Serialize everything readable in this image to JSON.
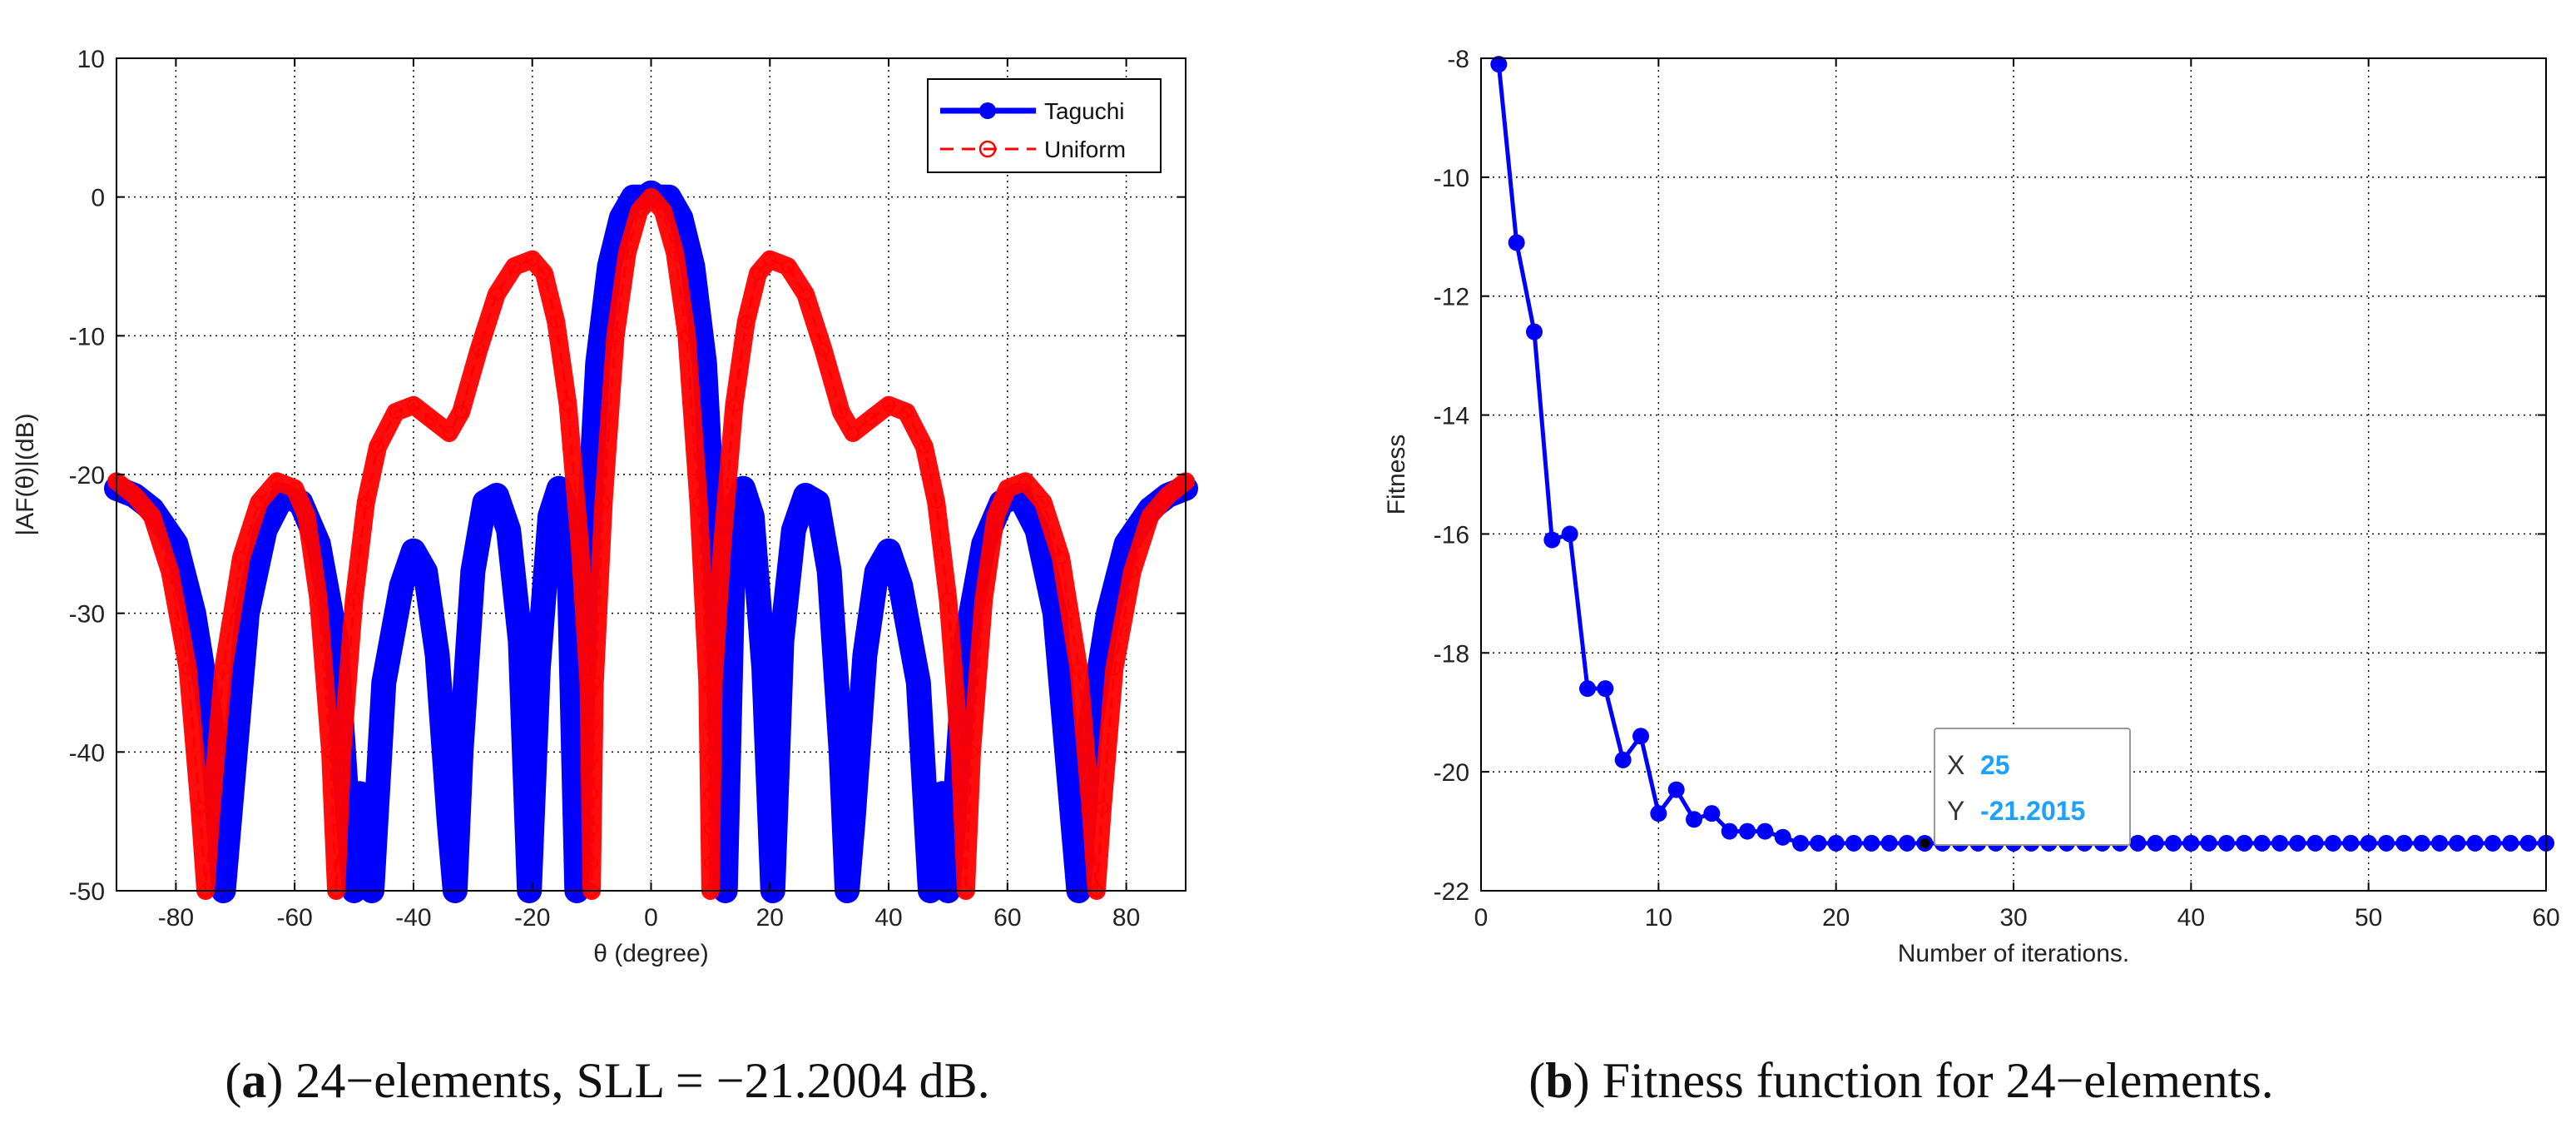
{
  "chart_data": [
    {
      "type": "line",
      "title": "",
      "xlabel": "θ (degree)",
      "ylabel": "|AF(θ)|(dB)",
      "xlim": [
        -90,
        90
      ],
      "ylim": [
        -50,
        10
      ],
      "xticks": [
        -80,
        -60,
        -40,
        -20,
        0,
        20,
        40,
        60,
        80
      ],
      "yticks": [
        10,
        0,
        -10,
        -20,
        -30,
        -40,
        -50
      ],
      "grid": true,
      "legend_position": "top-right",
      "series": [
        {
          "name": "Taguchi",
          "color": "#0000ff",
          "style": "solid line with filled circle markers",
          "points": [
            [
              -90,
              -21
            ],
            [
              -87,
              -21.5
            ],
            [
              -84,
              -22.5
            ],
            [
              -80,
              -25
            ],
            [
              -77,
              -30
            ],
            [
              -74,
              -38
            ],
            [
              -72,
              -50
            ],
            [
              -70,
              -40
            ],
            [
              -68,
              -30
            ],
            [
              -65,
              -24
            ],
            [
              -62,
              -21.5
            ],
            [
              -59,
              -22
            ],
            [
              -56,
              -25
            ],
            [
              -53,
              -32
            ],
            [
              -51,
              -45
            ],
            [
              -50,
              -50
            ],
            [
              -49,
              -43
            ],
            [
              -47,
              -50
            ],
            [
              -45,
              -35
            ],
            [
              -42,
              -28
            ],
            [
              -40,
              -25.5
            ],
            [
              -38,
              -27
            ],
            [
              -36,
              -33
            ],
            [
              -34,
              -45
            ],
            [
              -33,
              -50
            ],
            [
              -32,
              -40
            ],
            [
              -30,
              -27
            ],
            [
              -28,
              -22
            ],
            [
              -26,
              -21.5
            ],
            [
              -24,
              -24
            ],
            [
              -22,
              -32
            ],
            [
              -20.5,
              -50
            ],
            [
              -19,
              -34
            ],
            [
              -17,
              -23
            ],
            [
              -15.5,
              -21
            ],
            [
              -14,
              -23
            ],
            [
              -12.5,
              -50
            ],
            [
              -11,
              -28
            ],
            [
              -9,
              -12
            ],
            [
              -7,
              -5
            ],
            [
              -5,
              -1.5
            ],
            [
              -3,
              0
            ],
            [
              -1,
              0
            ],
            [
              0,
              0.3
            ],
            [
              1,
              0
            ],
            [
              3,
              0
            ],
            [
              5,
              -1.5
            ],
            [
              7,
              -5
            ],
            [
              9,
              -12
            ],
            [
              11,
              -28
            ],
            [
              12.5,
              -50
            ],
            [
              14,
              -23
            ],
            [
              15.5,
              -21
            ],
            [
              17,
              -23
            ],
            [
              19,
              -34
            ],
            [
              20.5,
              -50
            ],
            [
              22,
              -32
            ],
            [
              24,
              -24
            ],
            [
              26,
              -21.5
            ],
            [
              28,
              -22
            ],
            [
              30,
              -27
            ],
            [
              32,
              -40
            ],
            [
              33,
              -50
            ],
            [
              34,
              -45
            ],
            [
              36,
              -33
            ],
            [
              38,
              -27
            ],
            [
              40,
              -25.5
            ],
            [
              42,
              -28
            ],
            [
              45,
              -35
            ],
            [
              47,
              -50
            ],
            [
              49,
              -43
            ],
            [
              50,
              -50
            ],
            [
              51,
              -45
            ],
            [
              53,
              -32
            ],
            [
              56,
              -25
            ],
            [
              59,
              -22
            ],
            [
              62,
              -21.5
            ],
            [
              65,
              -24
            ],
            [
              68,
              -30
            ],
            [
              70,
              -40
            ],
            [
              72,
              -50
            ],
            [
              74,
              -38
            ],
            [
              77,
              -30
            ],
            [
              80,
              -25
            ],
            [
              84,
              -22.5
            ],
            [
              87,
              -21.5
            ],
            [
              90,
              -21
            ]
          ]
        },
        {
          "name": "Uniform",
          "color": "#ff0000",
          "style": "dashed line with open circle markers",
          "points": [
            [
              -90,
              -20.5
            ],
            [
              -87,
              -21.5
            ],
            [
              -84,
              -23
            ],
            [
              -81,
              -27
            ],
            [
              -78,
              -34
            ],
            [
              -76,
              -44
            ],
            [
              -75,
              -50
            ],
            [
              -74,
              -44
            ],
            [
              -72,
              -34
            ],
            [
              -69,
              -26
            ],
            [
              -66,
              -22
            ],
            [
              -63,
              -20.5
            ],
            [
              -60,
              -21
            ],
            [
              -58,
              -23
            ],
            [
              -56,
              -29
            ],
            [
              -54,
              -40
            ],
            [
              -53,
              -50
            ],
            [
              -52,
              -40
            ],
            [
              -50,
              -29
            ],
            [
              -48,
              -22
            ],
            [
              -46,
              -18
            ],
            [
              -43,
              -15.5
            ],
            [
              -40,
              -15
            ],
            [
              -37,
              -16
            ],
            [
              -34,
              -17
            ],
            [
              -32,
              -15.5
            ],
            [
              -29,
              -11
            ],
            [
              -26,
              -7
            ],
            [
              -23,
              -5
            ],
            [
              -20,
              -4.5
            ],
            [
              -18,
              -5.5
            ],
            [
              -16,
              -9
            ],
            [
              -14,
              -15
            ],
            [
              -12,
              -25
            ],
            [
              -10.5,
              -35
            ],
            [
              -10,
              -50
            ],
            [
              -9.5,
              -35
            ],
            [
              -8,
              -22
            ],
            [
              -6,
              -10
            ],
            [
              -4,
              -4
            ],
            [
              -2,
              -1
            ],
            [
              0,
              0
            ],
            [
              2,
              -1
            ],
            [
              4,
              -4
            ],
            [
              6,
              -10
            ],
            [
              8,
              -22
            ],
            [
              9.5,
              -35
            ],
            [
              10,
              -50
            ],
            [
              10.5,
              -35
            ],
            [
              12,
              -25
            ],
            [
              14,
              -15
            ],
            [
              16,
              -9
            ],
            [
              18,
              -5.5
            ],
            [
              20,
              -4.5
            ],
            [
              23,
              -5
            ],
            [
              26,
              -7
            ],
            [
              29,
              -11
            ],
            [
              32,
              -15.5
            ],
            [
              34,
              -17
            ],
            [
              37,
              -16
            ],
            [
              40,
              -15
            ],
            [
              43,
              -15.5
            ],
            [
              46,
              -18
            ],
            [
              48,
              -22
            ],
            [
              50,
              -29
            ],
            [
              52,
              -40
            ],
            [
              53,
              -50
            ],
            [
              54,
              -40
            ],
            [
              56,
              -29
            ],
            [
              58,
              -23
            ],
            [
              60,
              -21
            ],
            [
              63,
              -20.5
            ],
            [
              66,
              -22
            ],
            [
              69,
              -26
            ],
            [
              72,
              -34
            ],
            [
              74,
              -44
            ],
            [
              75,
              -50
            ],
            [
              76,
              -44
            ],
            [
              78,
              -34
            ],
            [
              81,
              -27
            ],
            [
              84,
              -23
            ],
            [
              87,
              -21.5
            ],
            [
              90,
              -20.5
            ]
          ]
        }
      ]
    },
    {
      "type": "line",
      "title": "",
      "xlabel": "Number of iterations.",
      "ylabel": "Fitness",
      "xlim": [
        0,
        60
      ],
      "ylim": [
        -22,
        -8
      ],
      "xticks": [
        0,
        10,
        20,
        30,
        40,
        50,
        60
      ],
      "yticks": [
        -8,
        -10,
        -12,
        -14,
        -16,
        -18,
        -20,
        -22
      ],
      "grid": true,
      "series": [
        {
          "color": "#0000ff",
          "style": "solid line with filled circle markers",
          "x": [
            1,
            2,
            3,
            4,
            5,
            6,
            7,
            8,
            9,
            10,
            11,
            12,
            13,
            14,
            15,
            16,
            17,
            18,
            19,
            20,
            21,
            22,
            23,
            24,
            25,
            26,
            27,
            28,
            29,
            30,
            31,
            32,
            33,
            34,
            35,
            36,
            37,
            38,
            39,
            40,
            41,
            42,
            43,
            44,
            45,
            46,
            47,
            48,
            49,
            50,
            51,
            52,
            53,
            54,
            55,
            56,
            57,
            58,
            59,
            60
          ],
          "y": [
            -8.1,
            -11.1,
            -12.6,
            -16.1,
            -16.0,
            -18.6,
            -18.6,
            -19.8,
            -19.4,
            -20.7,
            -20.3,
            -20.8,
            -20.7,
            -21.0,
            -21.0,
            -21.0,
            -21.1,
            -21.2,
            -21.2,
            -21.2,
            -21.2,
            -21.2,
            -21.2,
            -21.2,
            -21.2015,
            -21.2,
            -21.2,
            -21.2,
            -21.2,
            -21.2,
            -21.2,
            -21.2,
            -21.2,
            -21.2,
            -21.2,
            -21.2,
            -21.2,
            -21.2,
            -21.2,
            -21.2,
            -21.2,
            -21.2,
            -21.2,
            -21.2,
            -21.2,
            -21.2,
            -21.2,
            -21.2,
            -21.2,
            -21.2,
            -21.2,
            -21.2,
            -21.2,
            -21.2,
            -21.2,
            -21.2,
            -21.2,
            -21.2,
            -21.2,
            -21.2
          ]
        }
      ],
      "datatip": {
        "x_key": "X",
        "x_value": "25",
        "y_key": "Y",
        "y_value": "-21.2015",
        "point": [
          25,
          -21.2015
        ]
      }
    }
  ],
  "captions": [
    {
      "label": "a",
      "text": "24−elements, SLL = −21.2004 dB."
    },
    {
      "label": "b",
      "text": "Fitness function for 24−elements."
    }
  ]
}
